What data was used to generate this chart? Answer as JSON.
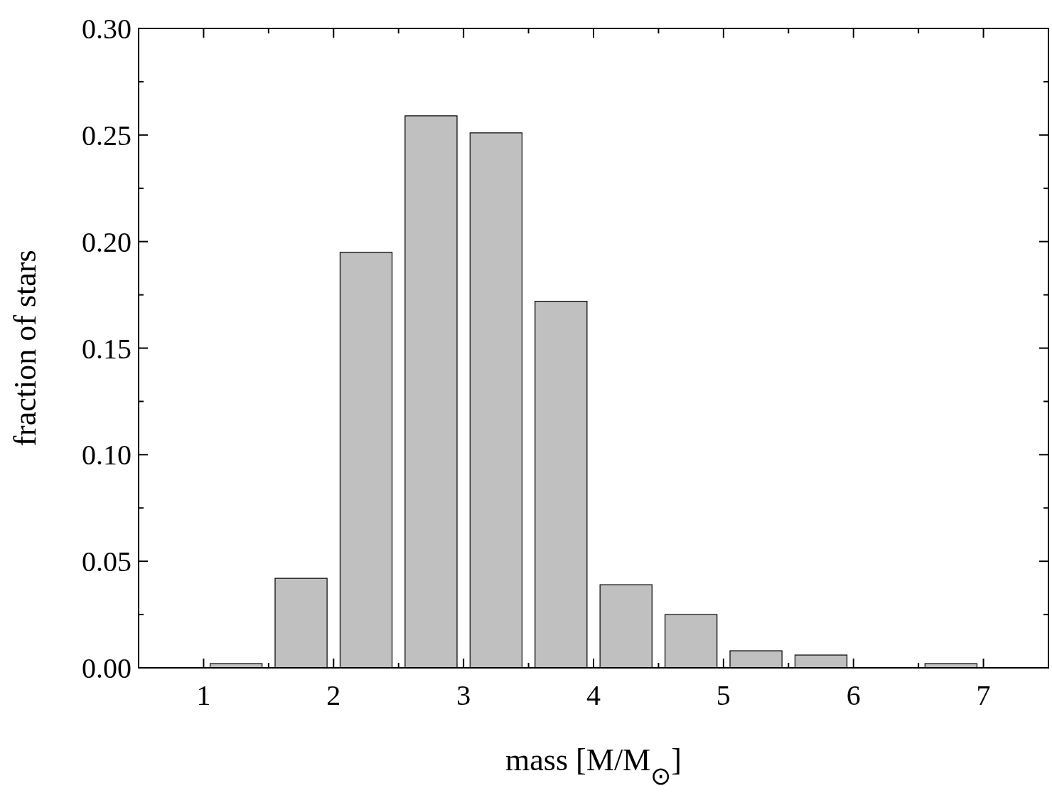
{
  "chart_data": {
    "type": "histogram",
    "xlabel": "mass [M/M$_{⊙}$]",
    "ylabel": "fraction of stars",
    "bins": [
      1,
      1.5,
      2,
      2.5,
      3,
      3.5,
      4,
      4.5,
      5,
      5.5,
      6,
      6.5,
      7
    ],
    "values": [
      0.002,
      0.042,
      0.195,
      0.259,
      0.251,
      0.172,
      0.039,
      0.025,
      0.008,
      0.006,
      0,
      0.002
    ],
    "color": "#c0c0c0",
    "xlim": [
      0.5,
      7.5
    ],
    "xticks": [
      {
        "value": 0.5,
        "label": null
      },
      1,
      {
        "value": 1.5,
        "label": null
      },
      2,
      {
        "value": 2.5,
        "label": null
      },
      3,
      {
        "value": 3.5,
        "label": null
      },
      4,
      {
        "value": 4.5,
        "label": null
      },
      5,
      {
        "value": 5.5,
        "label": null
      },
      6,
      {
        "value": 6.5,
        "label": null
      },
      7,
      {
        "value": 7.5,
        "label": null
      }
    ],
    "ylim": [
      0,
      0.3
    ],
    "yticks": [
      {
        "value": 0,
        "label": "0.00"
      },
      {
        "value": 0.025,
        "label": null
      },
      {
        "value": 0.05,
        "label": "0.05"
      },
      {
        "value": 0.075,
        "label": null
      },
      {
        "value": 0.1,
        "label": "0.10"
      },
      {
        "value": 0.125,
        "label": null
      },
      {
        "value": 0.15,
        "label": "0.15"
      },
      {
        "value": 0.175,
        "label": null
      },
      {
        "value": 0.2,
        "label": "0.20"
      },
      {
        "value": 0.225,
        "label": null
      },
      {
        "value": 0.25,
        "label": "0.25"
      },
      {
        "value": 0.275,
        "label": null
      },
      {
        "value": 0.3,
        "label": "0.30"
      }
    ],
    "grid": false
  }
}
